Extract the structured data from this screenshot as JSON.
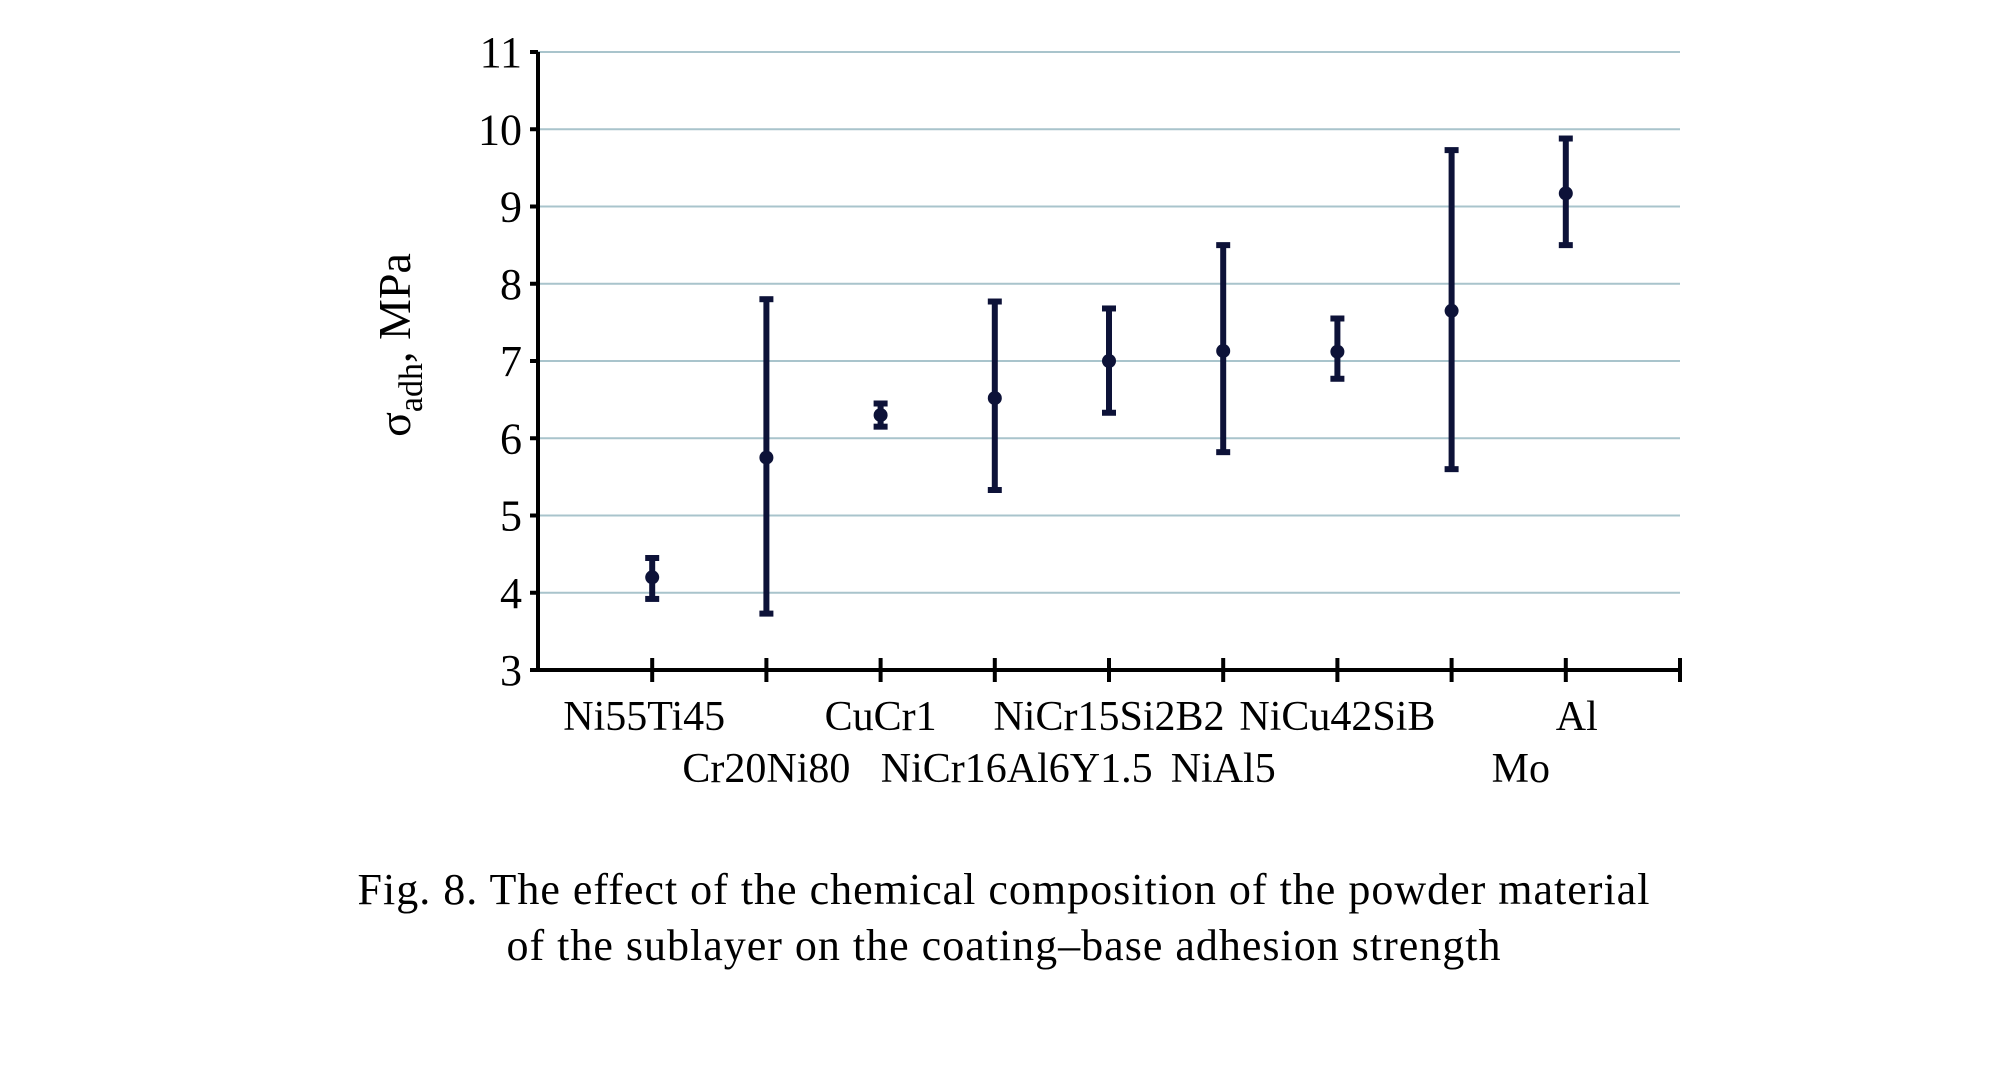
{
  "chart_data": {
    "type": "scatter",
    "ylabel_main": "σ",
    "ylabel_sub": "adh",
    "ylabel_rest": ", MPa",
    "ylim": [
      3,
      11
    ],
    "yticks": [
      3,
      4,
      5,
      6,
      7,
      8,
      9,
      10,
      11
    ],
    "grid": true,
    "categories": [
      "Ni55Ti45",
      "Cr20Ni80",
      "CuCr1",
      "NiCr16Al6Y1.5",
      "NiCr15Si2B2",
      "NiAl5",
      "NiCu42SiB",
      "Mo",
      "Al"
    ],
    "series": [
      {
        "values": [
          4.2,
          5.75,
          6.3,
          6.52,
          7.0,
          7.13,
          7.12,
          7.65,
          9.17
        ],
        "error_low": [
          3.92,
          3.73,
          6.15,
          5.33,
          6.33,
          5.82,
          6.77,
          5.6,
          8.5
        ],
        "error_high": [
          4.45,
          7.8,
          6.45,
          7.77,
          7.68,
          8.5,
          7.55,
          9.73,
          9.88
        ]
      }
    ],
    "colors": {
      "marker": "#0d1238",
      "grid": "#a9c4cc",
      "axis": "#000000"
    }
  },
  "caption": {
    "line1": "Fig. 8. The effect of the chemical composition of the powder material",
    "line2": "of the sublayer on the coating–base adhesion strength"
  }
}
